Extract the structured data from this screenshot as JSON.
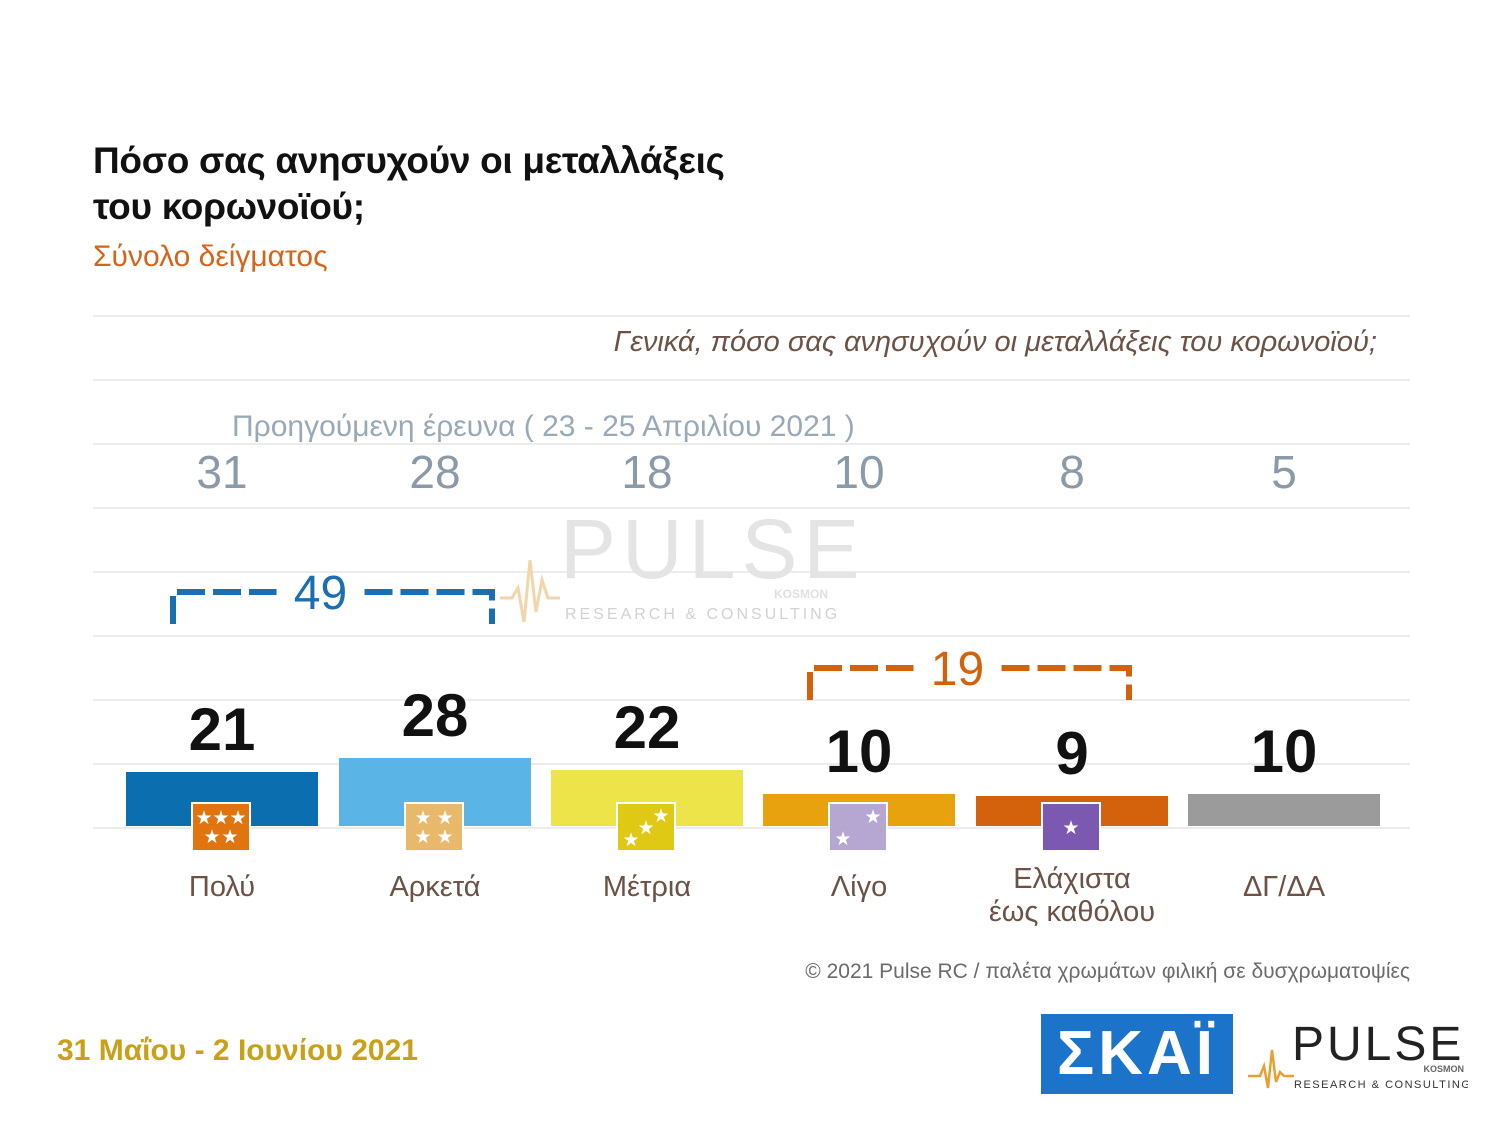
{
  "title_lines": [
    "Πόσο σας ανησυχούν οι μεταλλάξεις",
    "του κορωνοϊού;"
  ],
  "subtitle": "Σύνολο δείγματος",
  "question": "Γενικά, πόσο σας ανησυχούν οι μεταλλάξεις του κορωνοϊού;",
  "previous_survey_label": "Προηγούμενη έρευνα  ( 23 - 25 Απριλίου 2021 )",
  "footer_note": "© 2021 Pulse RC   /   παλέτα χρωμάτων φιλική σε δυσχρωματοψίες",
  "date_label": "31 Μαΐου - 2 Ιουνίου 2021",
  "watermark": {
    "brand": "PULSE",
    "tagline": "RESEARCH & CONSULTING",
    "sub": "KOSMON"
  },
  "logos": {
    "skai": "ΣΚΑΪ",
    "pulse": "PULSE",
    "pulse_tagline": "RESEARCH & CONSULTING",
    "pulse_sub": "KOSMON"
  },
  "colors": {
    "polu": "#0b6eae",
    "arketa": "#5ab4e6",
    "metria": "#ede44a",
    "ligo": "#e8a20d",
    "elaxista": "#d4620c",
    "dgda": "#9b9b9b",
    "bracket_positive": "#1b6fb0",
    "bracket_negative": "#d4620c",
    "subtitle": "#d5641b",
    "date": "#c9a01a"
  },
  "chart_data": {
    "type": "bar",
    "title": "Πόσο σας ανησυχούν οι μεταλλάξεις του κορωνοϊού;",
    "categories": [
      "Πολύ",
      "Αρκετά",
      "Μέτρια",
      "Λίγο",
      "Ελάχιστα έως καθόλου",
      "ΔΓ/ΔΑ"
    ],
    "category_lines": [
      [
        "Πολύ"
      ],
      [
        "Αρκετά"
      ],
      [
        "Μέτρια"
      ],
      [
        "Λίγο"
      ],
      [
        "Ελάχιστα",
        "έως καθόλου"
      ],
      [
        "ΔΓ/ΔΑ"
      ]
    ],
    "series": [
      {
        "values": [
          21,
          28,
          22,
          10,
          9,
          10
        ]
      },
      {
        "name": "Προηγούμενη έρευνα  ( 23 - 25 Απριλίου 2021 )",
        "values": [
          31,
          28,
          18,
          10,
          8,
          5
        ]
      }
    ],
    "bar_colors": [
      "#0b6eae",
      "#5ab4e6",
      "#ede44a",
      "#e8a20d",
      "#d4620c",
      "#9b9b9b"
    ],
    "icon_stars": [
      5,
      4,
      3,
      2,
      1,
      0
    ],
    "icon_colors": [
      "#e0740f",
      "#e8b96a",
      "#e0c915",
      "#b6a6d2",
      "#7b59b0",
      ""
    ],
    "groups": [
      {
        "value": 49,
        "from": 0,
        "to": 1,
        "color": "#1b6fb0"
      },
      {
        "value": 19,
        "from": 3,
        "to": 4,
        "color": "#d4620c"
      }
    ],
    "ylim": [
      0,
      100
    ],
    "grid": true
  }
}
